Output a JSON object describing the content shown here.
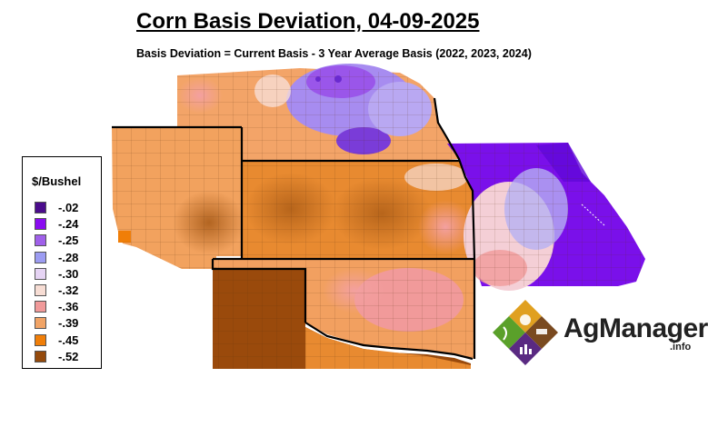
{
  "title": "Corn Basis Deviation, 04-09-2025",
  "subtitle": "Basis Deviation = Current Basis - 3 Year Average Basis (2022, 2023, 2024)",
  "legend": {
    "title": "$/Bushel",
    "items": [
      {
        "label": "-.02",
        "color": "#4b0c8c"
      },
      {
        "label": "-.24",
        "color": "#8a0cf0"
      },
      {
        "label": "-.25",
        "color": "#a060ea"
      },
      {
        "label": "-.28",
        "color": "#9c9cf2"
      },
      {
        "label": "-.30",
        "color": "#e6d4f4"
      },
      {
        "label": "-.32",
        "color": "#f7ddd4"
      },
      {
        "label": "-.36",
        "color": "#f19a9a"
      },
      {
        "label": "-.39",
        "color": "#f1a466"
      },
      {
        "label": "-.45",
        "color": "#f07e08"
      },
      {
        "label": "-.52",
        "color": "#944a0c"
      }
    ]
  },
  "logo": {
    "brand": "AgManager",
    "suffix": ".info"
  }
}
